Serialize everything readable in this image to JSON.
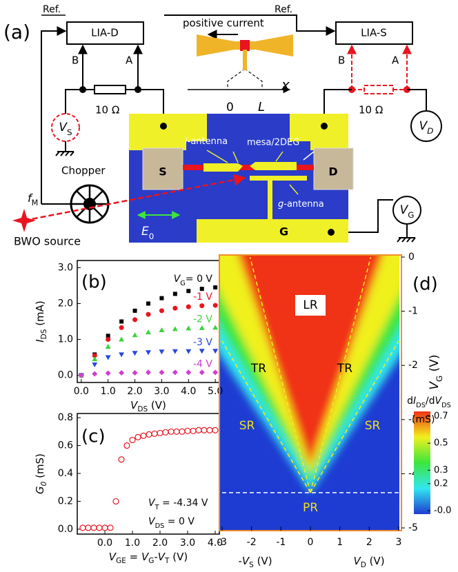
{
  "diagram": {
    "panel": "(a)",
    "ref_left": "Ref.",
    "lia_d": "LIA-D",
    "b_left": "B",
    "a_left": "A",
    "current": "positive current",
    "x_axis": [
      {
        "text": "x",
        "style": "i"
      }
    ],
    "zero": "0",
    "length": [
      {
        "text": "L",
        "style": "i"
      }
    ],
    "ref_right": "Ref.",
    "lia_s": "LIA-S",
    "b_right": "B",
    "a_right": "A",
    "res_left": "10 Ω",
    "res_right": "10 Ω",
    "vs": [
      {
        "text": "V",
        "style": "i"
      },
      {
        "text": "S",
        "style": "sub"
      }
    ],
    "vd": [
      {
        "text": "V",
        "style": "i"
      },
      {
        "text": "D",
        "style": "isub"
      }
    ],
    "source": "S",
    "drain": "D",
    "gate": "G",
    "i_antenna": [
      {
        "text": "i",
        "style": "i"
      },
      {
        "text": "-antenna"
      }
    ],
    "mesa": "mesa/2DEG",
    "g_antenna": [
      {
        "text": "g",
        "style": "i"
      },
      {
        "text": "-antenna"
      }
    ],
    "chopper": "Chopper",
    "fm": [
      {
        "text": "f",
        "style": "i"
      },
      {
        "text": "M",
        "style": "sub"
      }
    ],
    "bwo": "BWO source",
    "e0": [
      {
        "text": "E",
        "style": "i"
      },
      {
        "text": "0",
        "style": "sub"
      }
    ],
    "vg": [
      {
        "text": "V",
        "style": "i"
      },
      {
        "text": "G",
        "style": "sub"
      }
    ]
  },
  "chart_data": [
    {
      "type": "scatter",
      "panel": "(b)",
      "xlabel": [
        {
          "text": "V",
          "style": "i"
        },
        {
          "text": "DS",
          "style": "sub"
        },
        {
          "text": " (V)"
        }
      ],
      "ylabel": [
        {
          "text": "I",
          "style": "i"
        },
        {
          "text": "DS",
          "style": "sub"
        },
        {
          "text": " (mA)"
        }
      ],
      "legend_prefix": [
        {
          "text": "V",
          "style": "i"
        },
        {
          "text": "G",
          "style": "sub"
        },
        {
          "text": "= "
        }
      ],
      "x": [
        0,
        0.5,
        1,
        1.5,
        2,
        2.5,
        3,
        3.5,
        4,
        4.5,
        5
      ],
      "series": [
        {
          "name": "0 V",
          "color": "#000000",
          "marker": "square",
          "values": [
            0,
            0.58,
            1.1,
            1.5,
            1.8,
            2.0,
            2.15,
            2.27,
            2.35,
            2.41,
            2.45
          ]
        },
        {
          "name": "-1 V",
          "color": "#e8141e",
          "marker": "circle",
          "values": [
            0,
            0.55,
            1.0,
            1.33,
            1.55,
            1.7,
            1.8,
            1.87,
            1.91,
            1.94,
            1.95
          ]
        },
        {
          "name": "-2 V",
          "color": "#3cd23c",
          "marker": "triangle-up",
          "values": [
            0,
            0.45,
            0.8,
            1.0,
            1.12,
            1.2,
            1.26,
            1.29,
            1.31,
            1.32,
            1.33
          ]
        },
        {
          "name": "-3 V",
          "color": "#2846dc",
          "marker": "triangle-down",
          "values": [
            0,
            0.3,
            0.5,
            0.58,
            0.62,
            0.64,
            0.66,
            0.67,
            0.67,
            0.68,
            0.68
          ]
        },
        {
          "name": "-4 V",
          "color": "#d23cd2",
          "marker": "diamond",
          "values": [
            0,
            0.04,
            0.06,
            0.07,
            0.07,
            0.08,
            0.08,
            0.08,
            0.08,
            0.08,
            0.08
          ]
        }
      ],
      "xlim": [
        -0.15,
        5.15
      ],
      "ylim": [
        -0.2,
        3.2
      ],
      "xticks": [
        {
          "value": 0,
          "label": "0.0"
        },
        {
          "value": 1,
          "label": "1.0"
        },
        {
          "value": 2,
          "label": "2.0"
        },
        {
          "value": 3,
          "label": "3.0"
        },
        {
          "value": 4,
          "label": "4.0"
        },
        {
          "value": 5,
          "label": "5.0"
        }
      ],
      "yticks": [
        {
          "value": 0,
          "label": "0.0"
        },
        {
          "value": 1,
          "label": "1.0"
        },
        {
          "value": 2,
          "label": "2.0"
        },
        {
          "value": 3,
          "label": "3.0"
        }
      ]
    },
    {
      "type": "scatter",
      "panel": "(c)",
      "xlabel": [
        {
          "text": "V",
          "style": "i"
        },
        {
          "text": "GE",
          "style": "sub"
        },
        {
          "text": " = "
        },
        {
          "text": "V",
          "style": "i"
        },
        {
          "text": "G",
          "style": "sub"
        },
        {
          "text": "-"
        },
        {
          "text": "V",
          "style": "i"
        },
        {
          "text": "T",
          "style": "sub"
        },
        {
          "text": "  (V)"
        }
      ],
      "ylabel": [
        {
          "text": "G",
          "style": "i"
        },
        {
          "text": "0",
          "style": "isub"
        },
        {
          "text": " (mS)"
        }
      ],
      "annotations": [
        [
          {
            "text": "V",
            "style": "i"
          },
          {
            "text": "T",
            "style": "sub"
          },
          {
            "text": " = -4.34 V"
          }
        ],
        [
          {
            "text": "V",
            "style": "i"
          },
          {
            "text": "DS",
            "style": "sub"
          },
          {
            "text": " = 0 V"
          }
        ]
      ],
      "x": [
        -0.8,
        -0.6,
        -0.4,
        -0.2,
        0,
        0.2,
        0.4,
        0.6,
        0.8,
        1.0,
        1.2,
        1.4,
        1.6,
        1.8,
        2.0,
        2.2,
        2.4,
        2.6,
        2.8,
        3.0,
        3.2,
        3.4,
        3.6,
        3.8,
        4.0
      ],
      "series": [
        {
          "color": "#e8141e",
          "marker": "circle-open",
          "values": [
            0.01,
            0.01,
            0.01,
            0.01,
            0.01,
            0.01,
            0.2,
            0.5,
            0.6,
            0.64,
            0.66,
            0.67,
            0.68,
            0.685,
            0.69,
            0.695,
            0.7,
            0.7,
            0.7,
            0.705,
            0.705,
            0.71,
            0.71,
            0.71,
            0.71
          ]
        }
      ],
      "xlim": [
        -1.0,
        4.15
      ],
      "ylim": [
        -0.035,
        0.83
      ],
      "xticks": [
        {
          "value": 0,
          "label": "0.0"
        },
        {
          "value": 1,
          "label": "1.0"
        },
        {
          "value": 2,
          "label": "2.0"
        },
        {
          "value": 3,
          "label": "3.0"
        },
        {
          "value": 4,
          "label": "4.0"
        }
      ],
      "yticks": [
        {
          "value": 0,
          "label": "0.0"
        },
        {
          "value": 0.2,
          "label": "0.2"
        },
        {
          "value": 0.4,
          "label": "0.4"
        },
        {
          "value": 0.6,
          "label": "0.6"
        },
        {
          "value": 0.8,
          "label": "0.8"
        }
      ]
    },
    {
      "type": "heatmap",
      "panel": "(d)",
      "xlabel_left": [
        {
          "text": "-"
        },
        {
          "text": "V",
          "style": "i"
        },
        {
          "text": "S",
          "style": "sub"
        },
        {
          "text": " (V)"
        }
      ],
      "xlabel_right": [
        {
          "text": "V",
          "style": "i"
        },
        {
          "text": "D",
          "style": "sub"
        },
        {
          "text": " (V)"
        }
      ],
      "ylabel": [
        {
          "text": "V",
          "style": "i"
        },
        {
          "text": "G",
          "style": "sub"
        },
        {
          "text": " (V)"
        }
      ],
      "colorbar_label": [
        {
          "text": "d"
        },
        {
          "text": "I",
          "style": "i"
        },
        {
          "text": "DS",
          "style": "sub"
        },
        {
          "text": "/d"
        },
        {
          "text": "V",
          "style": "i"
        },
        {
          "text": "DS",
          "style": "sub"
        }
      ],
      "colorbar_unit": "(mS)",
      "regions": [
        "LR",
        "TR",
        "TR",
        "SR",
        "SR",
        "PR"
      ],
      "colors": [
        "#1e3cd2",
        "#32e6f0",
        "#3ce63c",
        "#f0f01e",
        "#f03214"
      ],
      "xlim": [
        -3,
        3
      ],
      "ylim": [
        0,
        -5
      ],
      "xticks": [
        -3,
        -2,
        -1,
        0,
        1,
        2,
        3
      ],
      "yticks": [
        0,
        -1,
        -2,
        -3,
        -4,
        -5
      ],
      "clim": [
        0,
        0.7
      ],
      "cticks": [
        {
          "value": 0.7,
          "label": "0.7"
        },
        {
          "value": 0.5,
          "label": "0.5"
        },
        {
          "value": 0.3,
          "label": "0.3"
        },
        {
          "value": 0.2,
          "label": "0.2"
        },
        {
          "value": 0,
          "label": "-0.0"
        }
      ]
    }
  ]
}
